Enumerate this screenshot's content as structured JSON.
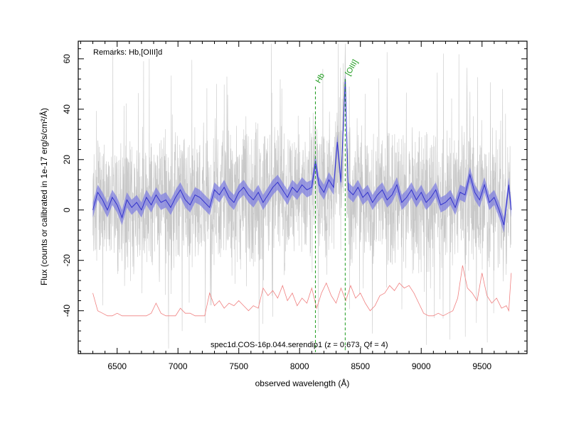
{
  "chart_data": {
    "type": "line",
    "title": "",
    "remarks": "Remarks: Hb,[OIII]d",
    "spectrum_id": "spec1d.COS-16p.044.serendip1 (z = 0.673, Qf = 4)",
    "xlabel": "observed wavelength (Å)",
    "ylabel": "Flux (counts or calibrated in 1e-17 erg/s/cm²/Å)",
    "xlim": [
      6180,
      9870
    ],
    "ylim": [
      -57,
      67
    ],
    "x_ticks": [
      6500,
      7000,
      7500,
      8000,
      8500,
      9000,
      9500
    ],
    "y_ticks": [
      -40,
      -20,
      0,
      20,
      40,
      60
    ],
    "grid": false,
    "colors": {
      "raw": "#c8c8c8",
      "smoothed": "#3333cc",
      "band": "#8080e0",
      "error": "#f08080",
      "lines": "#1a9a1a"
    },
    "emission_lines": [
      {
        "label": "Hb",
        "wavelength": 8130,
        "top": 49
      },
      {
        "label": "[OIII]",
        "wavelength": 8375,
        "top": 52
      }
    ],
    "series": [
      {
        "key": "smoothed",
        "x": [
          6300,
          6340,
          6380,
          6420,
          6460,
          6500,
          6540,
          6580,
          6620,
          6660,
          6700,
          6740,
          6780,
          6820,
          6860,
          6900,
          6940,
          6980,
          7020,
          7060,
          7100,
          7140,
          7180,
          7220,
          7260,
          7300,
          7340,
          7380,
          7420,
          7460,
          7500,
          7540,
          7580,
          7620,
          7660,
          7700,
          7740,
          7780,
          7820,
          7860,
          7900,
          7940,
          7980,
          8020,
          8060,
          8100,
          8130,
          8160,
          8200,
          8240,
          8280,
          8310,
          8340,
          8375,
          8400,
          8440,
          8480,
          8520,
          8560,
          8600,
          8640,
          8680,
          8720,
          8760,
          8800,
          8840,
          8880,
          8920,
          8960,
          9000,
          9040,
          9080,
          9120,
          9160,
          9200,
          9240,
          9280,
          9320,
          9360,
          9400,
          9440,
          9480,
          9520,
          9560,
          9600,
          9640,
          9680,
          9720,
          9740
        ],
        "y": [
          0,
          7,
          4,
          0,
          5,
          2,
          -3,
          4,
          1,
          3,
          0,
          5,
          2,
          6,
          3,
          4,
          1,
          5,
          8,
          4,
          2,
          6,
          5,
          3,
          1,
          8,
          6,
          9,
          5,
          3,
          7,
          9,
          6,
          4,
          7,
          3,
          6,
          9,
          11,
          8,
          5,
          9,
          7,
          10,
          8,
          9,
          19,
          10,
          7,
          12,
          9,
          27,
          11,
          52,
          8,
          6,
          9,
          5,
          7,
          3,
          6,
          8,
          4,
          6,
          10,
          3,
          5,
          8,
          4,
          7,
          3,
          5,
          8,
          2,
          3,
          5,
          1,
          7,
          6,
          14,
          7,
          4,
          10,
          3,
          5,
          0,
          -6,
          10,
          0
        ]
      },
      {
        "key": "error",
        "x": [
          6300,
          6340,
          6380,
          6420,
          6460,
          6500,
          6540,
          6580,
          6620,
          6660,
          6700,
          6740,
          6780,
          6820,
          6860,
          6900,
          6940,
          6980,
          7020,
          7060,
          7100,
          7140,
          7180,
          7220,
          7260,
          7300,
          7340,
          7380,
          7420,
          7460,
          7500,
          7540,
          7580,
          7620,
          7660,
          7700,
          7740,
          7780,
          7820,
          7860,
          7900,
          7940,
          7980,
          8020,
          8060,
          8100,
          8140,
          8180,
          8220,
          8260,
          8300,
          8340,
          8380,
          8420,
          8460,
          8500,
          8540,
          8580,
          8620,
          8660,
          8700,
          8740,
          8780,
          8820,
          8860,
          8900,
          8940,
          8980,
          9020,
          9060,
          9100,
          9140,
          9180,
          9220,
          9260,
          9300,
          9340,
          9380,
          9420,
          9460,
          9500,
          9540,
          9580,
          9620,
          9660,
          9700,
          9720,
          9740
        ],
        "y": [
          -33,
          -40,
          -41,
          -42,
          -42,
          -41,
          -42,
          -42,
          -42,
          -42,
          -42,
          -42,
          -41,
          -37,
          -41,
          -42,
          -42,
          -42,
          -39,
          -41,
          -41,
          -42,
          -42,
          -42,
          -33,
          -38,
          -36,
          -39,
          -37,
          -38,
          -36,
          -38,
          -40,
          -38,
          -39,
          -31,
          -34,
          -32,
          -35,
          -30,
          -36,
          -33,
          -38,
          -35,
          -37,
          -31,
          -39,
          -33,
          -29,
          -34,
          -37,
          -31,
          -36,
          -30,
          -35,
          -33,
          -37,
          -40,
          -38,
          -34,
          -33,
          -30,
          -32,
          -29,
          -31,
          -30,
          -33,
          -37,
          -41,
          -42,
          -42,
          -41,
          -42,
          -41,
          -40,
          -35,
          -22,
          -31,
          -33,
          -36,
          -25,
          -34,
          -37,
          -35,
          -39,
          -38,
          -40,
          -25
        ]
      }
    ]
  }
}
